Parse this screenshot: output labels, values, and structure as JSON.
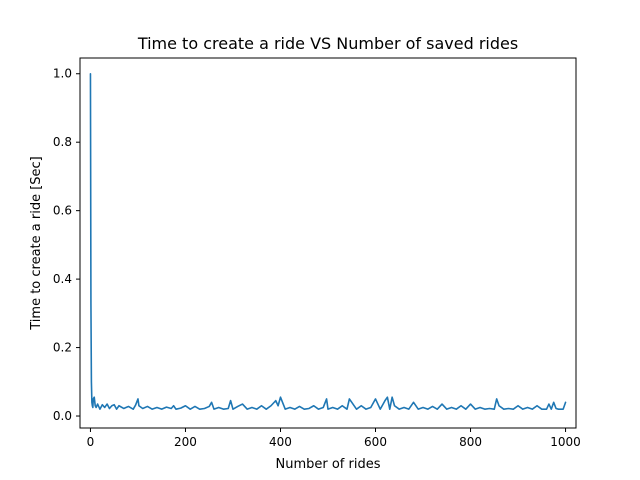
{
  "chart_data": {
    "type": "line",
    "title": "Time to create a ride VS Number of saved rides",
    "xlabel": "Number of rides",
    "ylabel": "Time to create a ride [Sec]",
    "xlim": [
      -22,
      1022
    ],
    "ylim": [
      -0.035,
      1.046
    ],
    "xticks": [
      0,
      200,
      400,
      600,
      800,
      1000
    ],
    "yticks": [
      0.0,
      0.2,
      0.4,
      0.6,
      0.8,
      1.0
    ],
    "ytick_labels": [
      "0.0",
      "0.2",
      "0.4",
      "0.6",
      "0.8",
      "1.0"
    ],
    "grid": false,
    "series": [
      {
        "color": "#1f77b4",
        "x": [
          0,
          1,
          2,
          3,
          4,
          5,
          6,
          8,
          10,
          12,
          15,
          20,
          25,
          30,
          35,
          40,
          45,
          50,
          55,
          60,
          70,
          80,
          90,
          95,
          100,
          102,
          110,
          120,
          130,
          140,
          150,
          160,
          170,
          175,
          180,
          190,
          200,
          210,
          220,
          230,
          240,
          250,
          255,
          260,
          270,
          280,
          290,
          295,
          300,
          310,
          320,
          330,
          340,
          350,
          360,
          370,
          380,
          390,
          395,
          400,
          410,
          420,
          430,
          440,
          450,
          460,
          470,
          480,
          490,
          497,
          500,
          510,
          520,
          530,
          540,
          545,
          550,
          560,
          570,
          580,
          590,
          600,
          610,
          620,
          625,
          630,
          635,
          640,
          650,
          660,
          670,
          680,
          690,
          700,
          710,
          720,
          730,
          740,
          750,
          760,
          770,
          780,
          790,
          800,
          810,
          820,
          830,
          840,
          850,
          855,
          860,
          870,
          880,
          890,
          900,
          910,
          920,
          930,
          940,
          950,
          960,
          965,
          970,
          975,
          980,
          985,
          990,
          995,
          1000
        ],
        "y": [
          1.0,
          0.33,
          0.1,
          0.04,
          0.03,
          0.025,
          0.05,
          0.055,
          0.03,
          0.025,
          0.035,
          0.02,
          0.033,
          0.025,
          0.035,
          0.022,
          0.03,
          0.033,
          0.02,
          0.03,
          0.022,
          0.028,
          0.02,
          0.032,
          0.05,
          0.03,
          0.022,
          0.028,
          0.02,
          0.025,
          0.02,
          0.026,
          0.022,
          0.03,
          0.02,
          0.023,
          0.03,
          0.02,
          0.028,
          0.02,
          0.022,
          0.028,
          0.04,
          0.02,
          0.025,
          0.02,
          0.022,
          0.045,
          0.02,
          0.028,
          0.035,
          0.02,
          0.025,
          0.02,
          0.03,
          0.02,
          0.03,
          0.045,
          0.03,
          0.055,
          0.02,
          0.025,
          0.02,
          0.028,
          0.02,
          0.022,
          0.03,
          0.02,
          0.025,
          0.05,
          0.02,
          0.025,
          0.02,
          0.03,
          0.02,
          0.05,
          0.04,
          0.02,
          0.03,
          0.02,
          0.025,
          0.05,
          0.02,
          0.045,
          0.055,
          0.02,
          0.055,
          0.03,
          0.02,
          0.025,
          0.02,
          0.04,
          0.02,
          0.025,
          0.02,
          0.028,
          0.02,
          0.035,
          0.02,
          0.025,
          0.02,
          0.03,
          0.02,
          0.035,
          0.02,
          0.025,
          0.02,
          0.022,
          0.02,
          0.05,
          0.03,
          0.02,
          0.022,
          0.02,
          0.03,
          0.02,
          0.025,
          0.02,
          0.03,
          0.02,
          0.02,
          0.035,
          0.02,
          0.04,
          0.022,
          0.02,
          0.02,
          0.02,
          0.04
        ]
      }
    ]
  }
}
